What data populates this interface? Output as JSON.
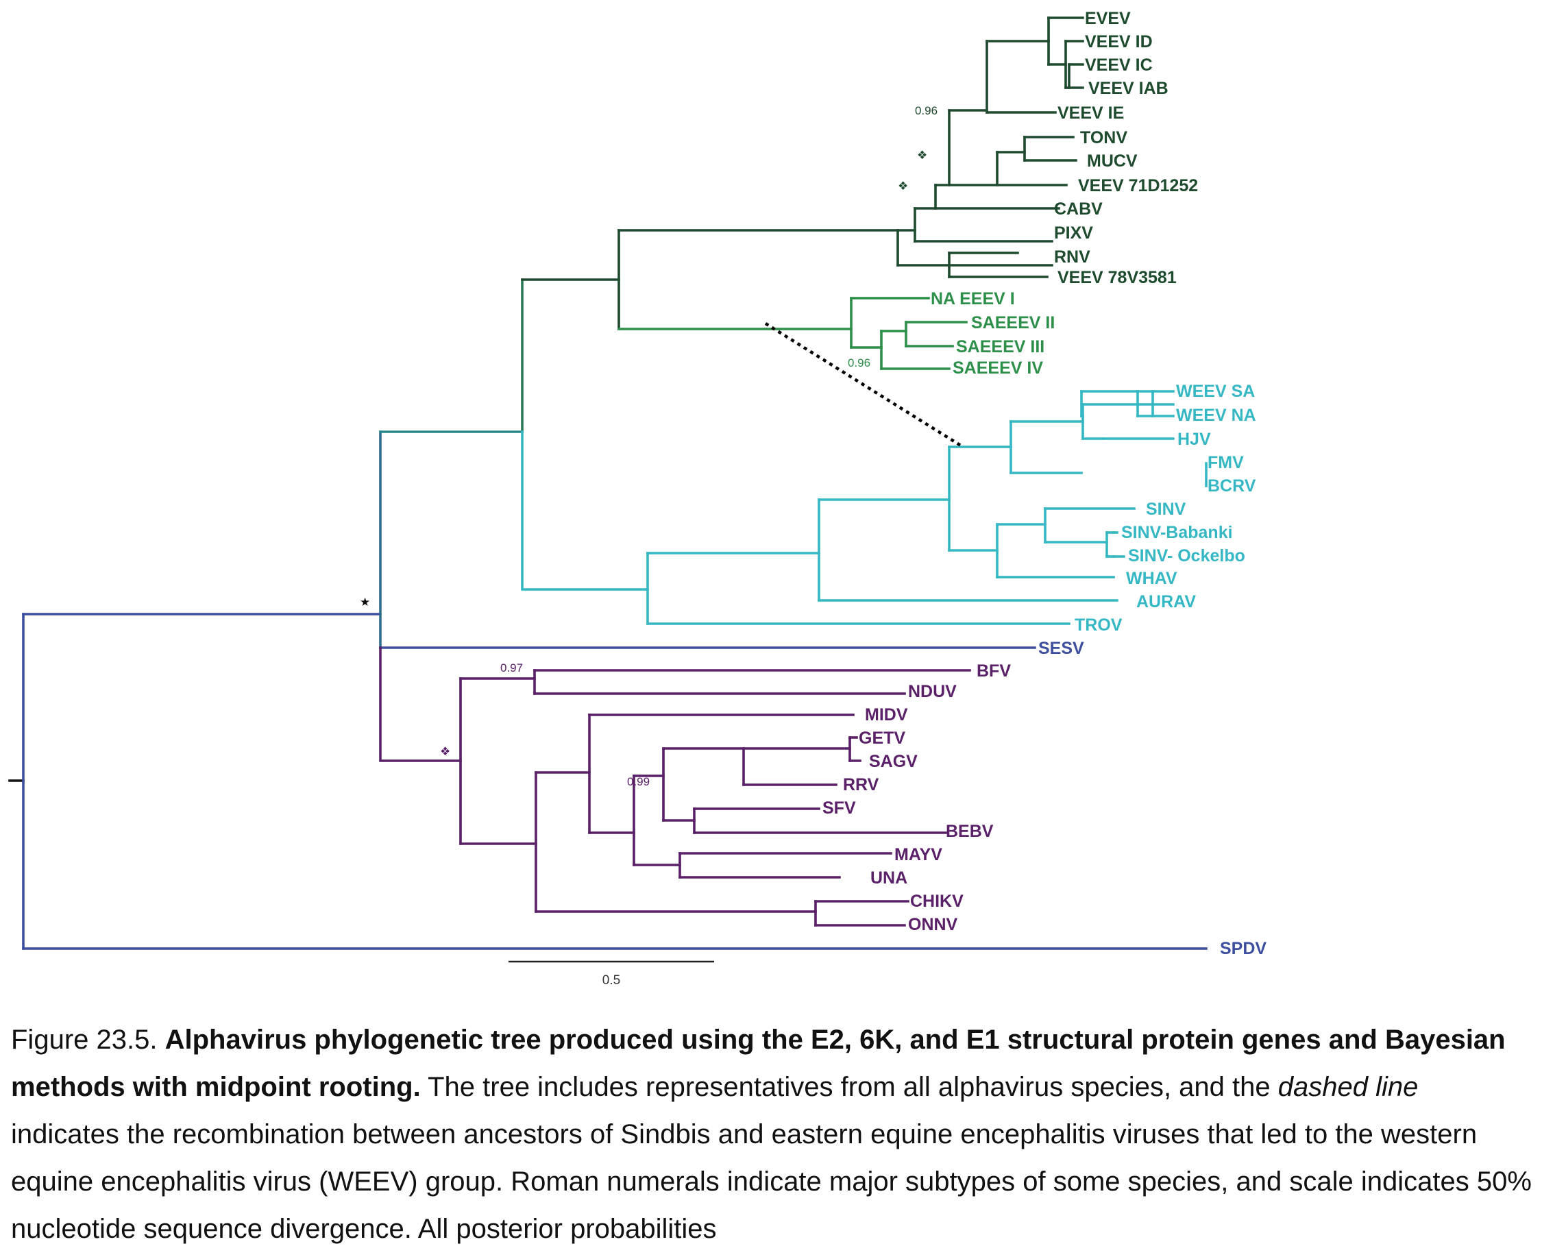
{
  "colors": {
    "veev_clade": "#1e4a2e",
    "eeev_clade": "#2e8f4a",
    "weev_sinv_clade": "#35b8c4",
    "sf_clade": "#5a2068",
    "root_branches": "#3d4f9e",
    "recombination_line": "#000000",
    "text": "#111111"
  },
  "taxa": {
    "evev": "EVEV",
    "veev_id": "VEEV ID",
    "veev_ic": "VEEV IC",
    "veev_iab": "VEEV IAB",
    "veev_ie": "VEEV IE",
    "tonv": "TONV",
    "mucv": "MUCV",
    "veev_71d1252": "VEEV 71D1252",
    "cabv": "CABV",
    "pixv": "PIXV",
    "rnv": "RNV",
    "veev_78v3581": "VEEV 78V3581",
    "na_eeev_i": "NA EEEV I",
    "saeeev_ii": "SAEEEV II",
    "saeeev_iii": "SAEEEV III",
    "saeeev_iv": "SAEEEV IV",
    "weev_sa": "WEEV SA",
    "weev_na": "WEEV NA",
    "hjv": "HJV",
    "fmv": "FMV",
    "bcrv": "BCRV",
    "sinv": "SINV",
    "sinv_babanki": "SINV-Babanki",
    "sinv_ockelbo": "SINV- Ockelbo",
    "whav": "WHAV",
    "aurav": "AURAV",
    "trov": "TROV",
    "sesv": "SESV",
    "bfv": "BFV",
    "nduv": "NDUV",
    "midv": "MIDV",
    "getv": "GETV",
    "sagv": "SAGV",
    "rrv": "RRV",
    "sfv": "SFV",
    "bebv": "BEBV",
    "mayv": "MAYV",
    "una": "UNA",
    "chikv": "CHIKV",
    "onnv": "ONNV",
    "spdv": "SPDV"
  },
  "node_labels": {
    "veev_096": "0.96",
    "eeev_096": "0.96",
    "bfv_097": "0.97",
    "sfv_099": "0.99",
    "diamond_symbol": "❖",
    "star_symbol": "★"
  },
  "scale_bar": {
    "label": "0.5"
  },
  "caption": {
    "figure_number": "Figure 23.5.",
    "title": "Alphavirus phylogenetic tree produced using the E2, 6K, and E1 structural protein genes and Bayesian methods with midpoint rooting.",
    "text_1": "The tree includes representatives from all alphavirus species, and the",
    "dashed_term": "dashed line",
    "text_2": "indicates the recombination between ancestors of Sindbis and eastern equine encephalitis viruses that led to the western equine encephalitis virus (WEEV) group. Roman numerals indicate major subtypes of some species, and scale indicates 50% nucleotide sequence divergence. All posterior probabilities"
  }
}
